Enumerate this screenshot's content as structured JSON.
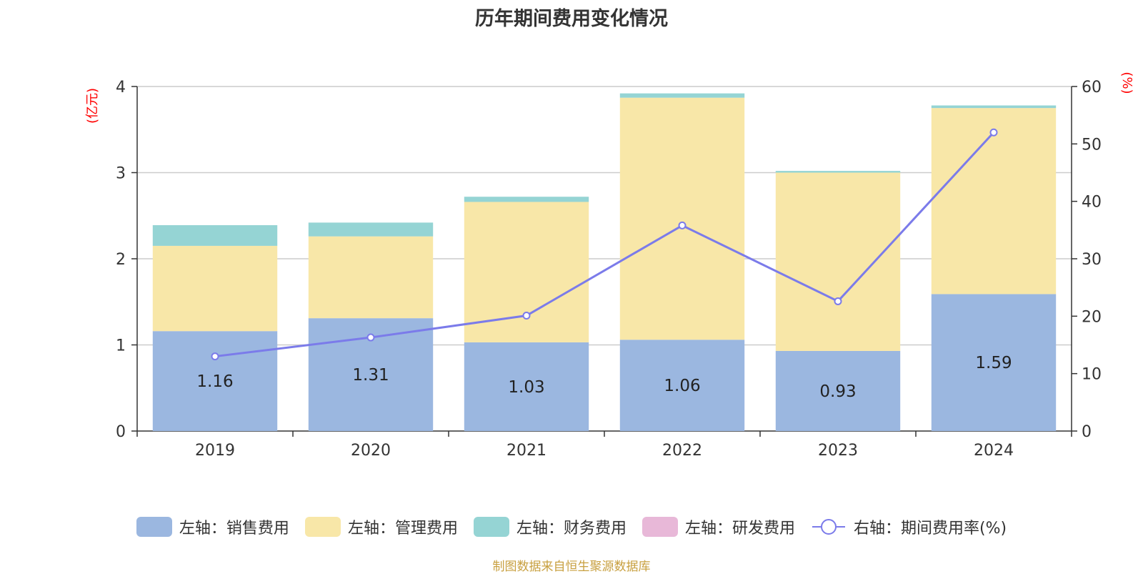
{
  "chart_data": {
    "type": "bar",
    "stacked": true,
    "title": "历年期间费用变化情况",
    "categories": [
      "2019",
      "2020",
      "2021",
      "2022",
      "2023",
      "2024"
    ],
    "series": [
      {
        "name": "左轴：销售费用",
        "axis": "left",
        "color": "#9bb7e0",
        "values": [
          1.16,
          1.31,
          1.03,
          1.06,
          0.93,
          1.59
        ]
      },
      {
        "name": "左轴：管理费用",
        "axis": "left",
        "color": "#f8e7a8",
        "values": [
          0.99,
          0.95,
          1.63,
          2.81,
          2.07,
          2.16
        ]
      },
      {
        "name": "左轴：财务费用",
        "axis": "left",
        "color": "#95d4d4",
        "values": [
          0.24,
          0.16,
          0.06,
          0.05,
          0.02,
          0.03
        ]
      },
      {
        "name": "左轴：研发费用",
        "axis": "left",
        "color": "#e8b8d8",
        "values": [
          0,
          0,
          0,
          0,
          0,
          0
        ]
      },
      {
        "name": "右轴：期间费用率(%)",
        "axis": "right",
        "type": "line",
        "color": "#7b7bea",
        "values": [
          13.0,
          16.3,
          20.1,
          35.8,
          22.6,
          52.0
        ]
      }
    ],
    "data_labels": [
      "1.16",
      "1.31",
      "1.03",
      "1.06",
      "0.93",
      "1.59"
    ],
    "y_left": {
      "label": "(亿元)",
      "ylim": [
        0,
        4
      ],
      "ticks": [
        0,
        1,
        2,
        3,
        4
      ]
    },
    "y_right": {
      "label": "(%)",
      "ylim": [
        0,
        60
      ],
      "ticks": [
        0,
        10,
        20,
        30,
        40,
        50,
        60
      ]
    },
    "grid": true,
    "legend_position": "bottom"
  },
  "source_note": "制图数据来自恒生聚源数据库"
}
